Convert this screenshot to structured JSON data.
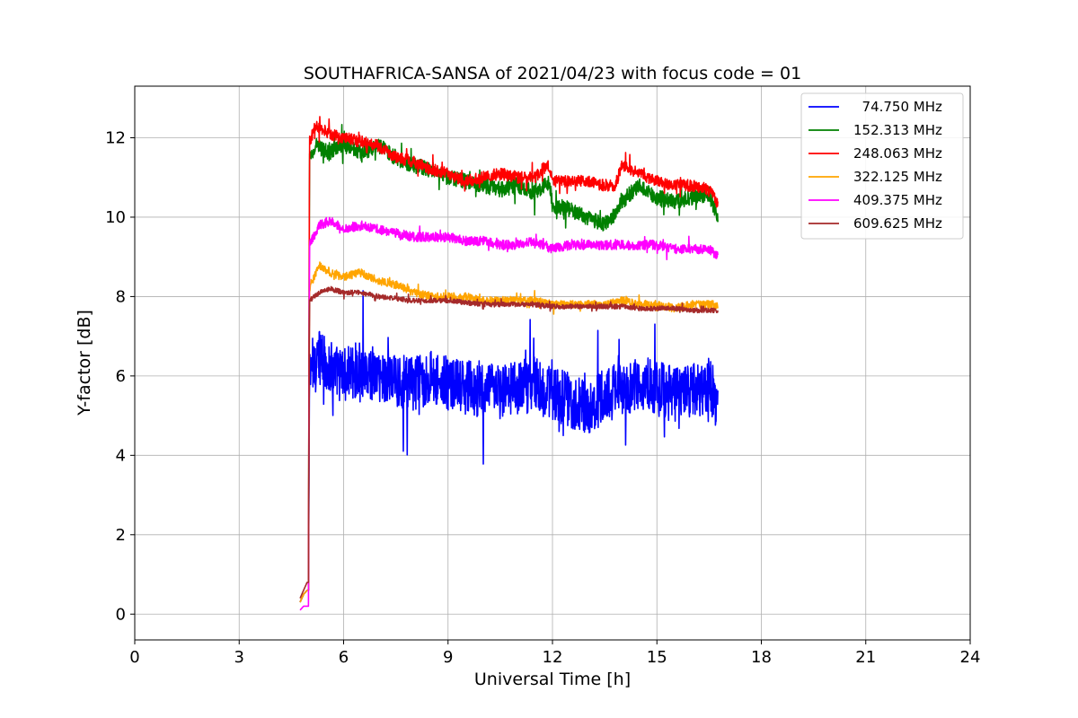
{
  "chart_data": {
    "type": "line",
    "title": "SOUTHAFRICA-SANSA of 2021/04/23 with focus code = 01",
    "xlabel": "Universal Time [h]",
    "ylabel": "Y-factor [dB]",
    "xlim": [
      0,
      24
    ],
    "ylim": [
      -0.65,
      13.3
    ],
    "xticks": [
      0,
      3,
      6,
      9,
      12,
      15,
      18,
      21,
      24
    ],
    "yticks": [
      0,
      2,
      4,
      6,
      8,
      10,
      12
    ],
    "grid": true,
    "legend_position": "top-right",
    "series": [
      {
        "name": "  74.750 MHz",
        "color": "#0000ff",
        "noise": 0.7,
        "x": [
          4.75,
          4.85,
          4.95,
          4.99,
          5.02,
          5.1,
          5.3,
          5.6,
          6.0,
          6.5,
          7.0,
          7.5,
          8.0,
          8.5,
          9.0,
          9.5,
          10.0,
          10.5,
          11.0,
          11.5,
          12.0,
          12.5,
          13.0,
          13.5,
          14.0,
          14.5,
          15.0,
          15.5,
          16.0,
          16.5,
          16.75
        ],
        "y": [
          0.3,
          0.5,
          0.6,
          0.6,
          6.0,
          6.3,
          6.5,
          6.2,
          6.0,
          6.2,
          6.0,
          5.9,
          5.8,
          6.0,
          5.8,
          5.7,
          5.6,
          5.6,
          5.7,
          5.8,
          5.5,
          5.4,
          5.2,
          5.5,
          5.7,
          5.8,
          5.7,
          5.5,
          5.6,
          5.8,
          5.3
        ]
      },
      {
        "name": "152.313 MHz",
        "color": "#008000",
        "noise": 0.2,
        "x": [
          4.75,
          4.85,
          4.95,
          4.99,
          5.02,
          5.2,
          5.6,
          6.0,
          6.5,
          7.0,
          7.5,
          8.0,
          8.5,
          9.0,
          9.5,
          10.0,
          10.5,
          11.0,
          11.5,
          11.9,
          12.0,
          12.5,
          13.0,
          13.5,
          13.8,
          14.0,
          14.5,
          15.0,
          15.5,
          16.0,
          16.5,
          16.75
        ],
        "y": [
          0.3,
          0.5,
          0.6,
          0.6,
          11.5,
          11.8,
          11.6,
          11.9,
          11.6,
          11.8,
          11.5,
          11.3,
          11.2,
          11.0,
          10.9,
          10.8,
          10.7,
          10.8,
          10.6,
          10.9,
          10.3,
          10.2,
          10.0,
          9.8,
          10.1,
          10.4,
          10.8,
          10.5,
          10.4,
          10.5,
          10.6,
          10.0
        ]
      },
      {
        "name": "248.063 MHz",
        "color": "#ff0000",
        "noise": 0.15,
        "x": [
          4.75,
          4.85,
          4.95,
          4.99,
          5.02,
          5.2,
          5.6,
          6.0,
          6.5,
          7.0,
          7.5,
          8.0,
          8.5,
          9.0,
          9.5,
          10.0,
          10.5,
          11.0,
          11.5,
          11.9,
          12.0,
          12.5,
          13.0,
          13.5,
          13.8,
          14.0,
          14.5,
          15.0,
          15.5,
          16.0,
          16.5,
          16.75
        ],
        "y": [
          0.3,
          0.5,
          0.6,
          0.6,
          11.9,
          12.3,
          12.1,
          12.0,
          11.9,
          11.8,
          11.5,
          11.4,
          11.2,
          11.1,
          10.9,
          11.0,
          11.1,
          11.0,
          11.0,
          11.3,
          10.9,
          10.9,
          10.9,
          10.8,
          10.8,
          11.3,
          11.1,
          10.9,
          10.8,
          10.8,
          10.7,
          10.3
        ]
      },
      {
        "name": "322.125 MHz",
        "color": "#ffa500",
        "noise": 0.1,
        "x": [
          4.75,
          4.85,
          4.95,
          4.99,
          5.02,
          5.3,
          5.6,
          6.0,
          6.5,
          7.0,
          7.5,
          8.0,
          8.5,
          9.0,
          9.5,
          10.0,
          10.5,
          11.0,
          11.5,
          12.0,
          12.5,
          13.0,
          13.5,
          14.0,
          14.5,
          15.0,
          15.5,
          16.0,
          16.5,
          16.75
        ],
        "y": [
          0.3,
          0.5,
          0.6,
          0.6,
          8.2,
          8.8,
          8.6,
          8.5,
          8.6,
          8.4,
          8.3,
          8.1,
          8.0,
          8.0,
          8.0,
          7.9,
          7.9,
          7.9,
          7.9,
          7.8,
          7.8,
          7.8,
          7.8,
          7.9,
          7.8,
          7.8,
          7.7,
          7.8,
          7.8,
          7.8
        ]
      },
      {
        "name": "409.375 MHz",
        "color": "#ff00ff",
        "noise": 0.12,
        "x": [
          4.75,
          4.85,
          4.95,
          4.99,
          5.02,
          5.3,
          5.6,
          6.0,
          6.5,
          7.0,
          7.5,
          8.0,
          8.5,
          9.0,
          9.5,
          10.0,
          10.5,
          11.0,
          11.5,
          12.0,
          12.5,
          13.0,
          13.5,
          14.0,
          14.5,
          15.0,
          15.5,
          16.0,
          16.5,
          16.75
        ],
        "y": [
          0.1,
          0.2,
          0.2,
          0.2,
          9.3,
          9.8,
          9.9,
          9.7,
          9.8,
          9.7,
          9.6,
          9.5,
          9.5,
          9.5,
          9.4,
          9.4,
          9.3,
          9.3,
          9.4,
          9.2,
          9.3,
          9.3,
          9.3,
          9.3,
          9.3,
          9.3,
          9.2,
          9.2,
          9.2,
          9.0
        ]
      },
      {
        "name": "609.625 MHz",
        "color": "#a52a2a",
        "noise": 0.06,
        "x": [
          4.75,
          4.85,
          4.95,
          4.99,
          5.02,
          5.3,
          5.6,
          6.0,
          6.5,
          7.0,
          7.5,
          8.0,
          8.5,
          9.0,
          9.5,
          10.0,
          10.5,
          11.0,
          11.5,
          12.0,
          12.5,
          13.0,
          13.5,
          14.0,
          14.5,
          15.0,
          15.5,
          16.0,
          16.5,
          16.75
        ],
        "y": [
          0.4,
          0.6,
          0.8,
          0.8,
          7.9,
          8.1,
          8.2,
          8.1,
          8.1,
          8.0,
          7.95,
          7.9,
          7.9,
          7.9,
          7.85,
          7.8,
          7.8,
          7.8,
          7.8,
          7.75,
          7.75,
          7.75,
          7.75,
          7.75,
          7.7,
          7.7,
          7.7,
          7.65,
          7.65,
          7.65
        ]
      }
    ]
  }
}
